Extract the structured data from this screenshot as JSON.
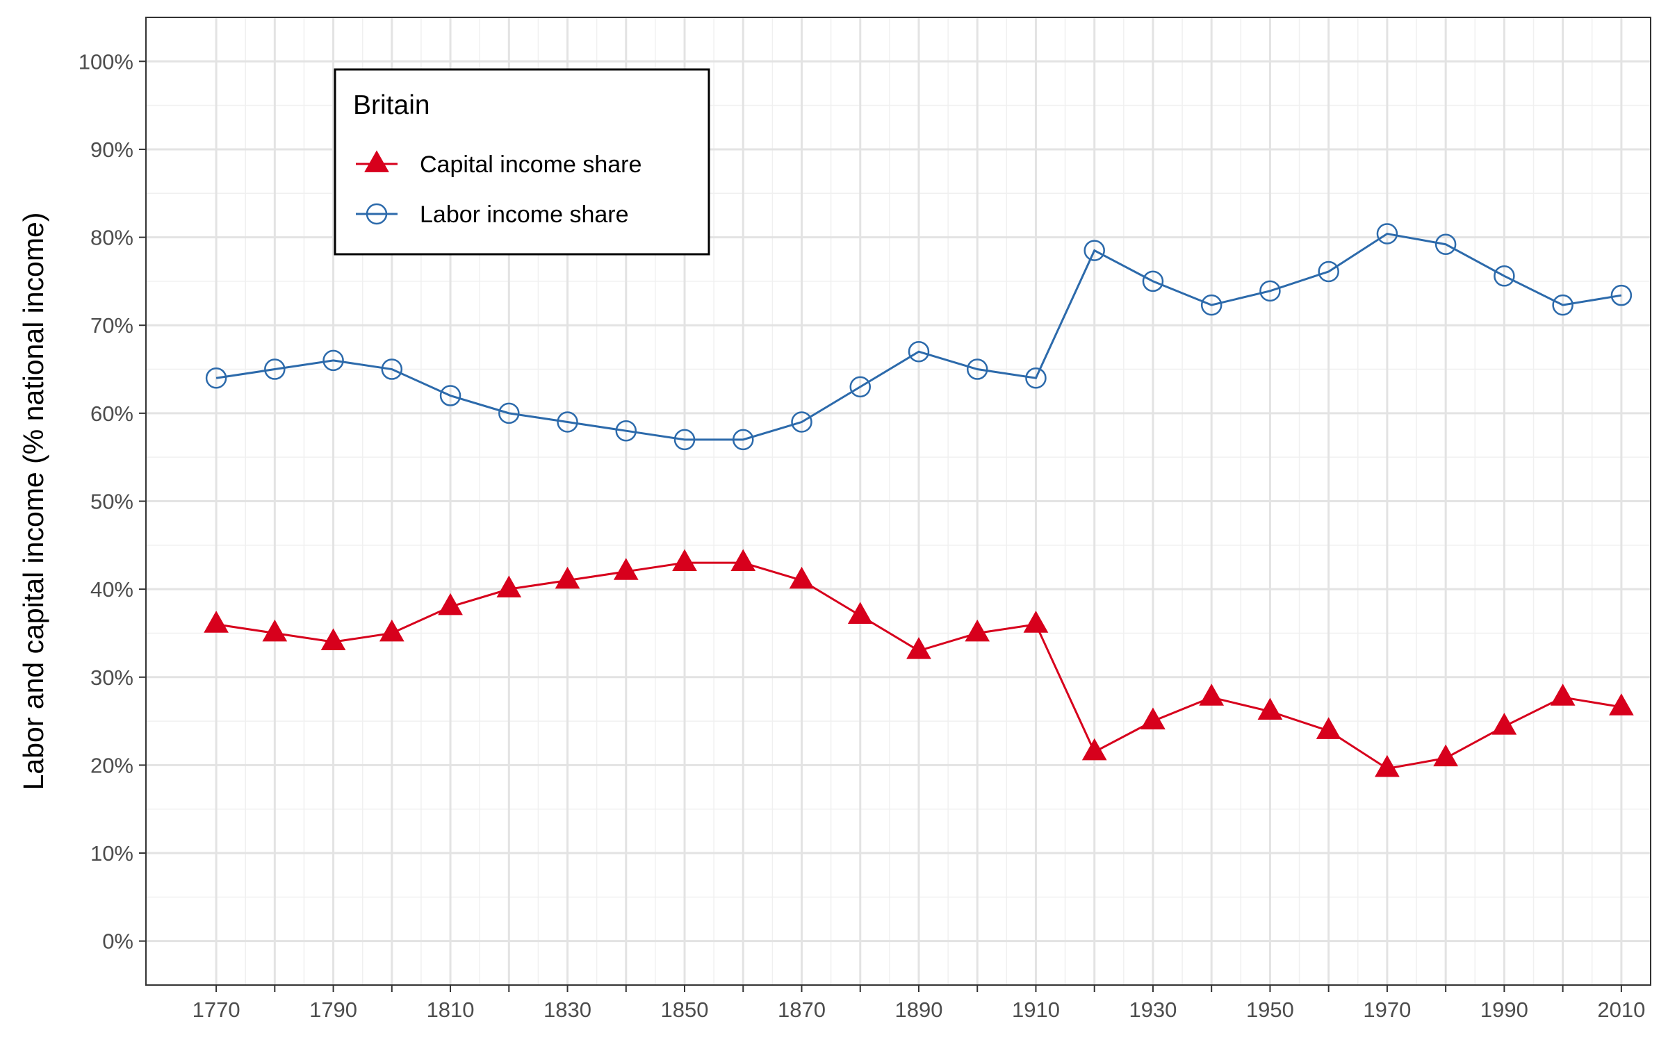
{
  "chart_data": {
    "type": "line",
    "title": "",
    "xlabel": "",
    "ylabel": "Labor and capital income (% national income)",
    "x": [
      1770,
      1780,
      1790,
      1800,
      1810,
      1820,
      1830,
      1840,
      1850,
      1860,
      1870,
      1880,
      1890,
      1900,
      1910,
      1920,
      1930,
      1940,
      1950,
      1960,
      1970,
      1980,
      1990,
      2000,
      2010
    ],
    "xlim": [
      1758,
      2015
    ],
    "ylim": [
      -5,
      105
    ],
    "x_ticks": [
      1770,
      1790,
      1810,
      1830,
      1850,
      1870,
      1890,
      1910,
      1930,
      1950,
      1970,
      1990,
      2010
    ],
    "x_tick_labels": [
      "1770",
      "1790",
      "1810",
      "1830",
      "1850",
      "1870",
      "1890",
      "1910",
      "1930",
      "1950",
      "1970",
      "1990",
      "2010"
    ],
    "y_ticks": [
      0,
      10,
      20,
      30,
      40,
      50,
      60,
      70,
      80,
      90,
      100
    ],
    "y_tick_labels": [
      "0%",
      "10%",
      "20%",
      "30%",
      "40%",
      "50%",
      "60%",
      "70%",
      "80%",
      "90%",
      "100%"
    ],
    "grid": true,
    "legend_position": "top-left",
    "legend_title": "Britain",
    "series": [
      {
        "name": "Capital income share",
        "color": "#d7001c",
        "marker": "filled-triangle",
        "values": [
          36,
          35,
          34,
          35,
          38,
          40,
          41,
          42,
          43,
          43,
          41,
          37,
          33,
          35,
          36,
          21.5,
          25,
          27.7,
          26.1,
          23.9,
          19.6,
          20.8,
          24.4,
          27.7,
          26.6
        ]
      },
      {
        "name": "Labor income share",
        "color": "#2c6aab",
        "marker": "open-circle",
        "values": [
          64,
          65,
          66,
          65,
          62,
          60,
          59,
          58,
          57,
          57,
          59,
          63,
          67,
          65,
          64,
          78.5,
          75,
          72.3,
          73.9,
          76.1,
          80.4,
          79.2,
          75.6,
          72.3,
          73.4
        ]
      }
    ]
  }
}
